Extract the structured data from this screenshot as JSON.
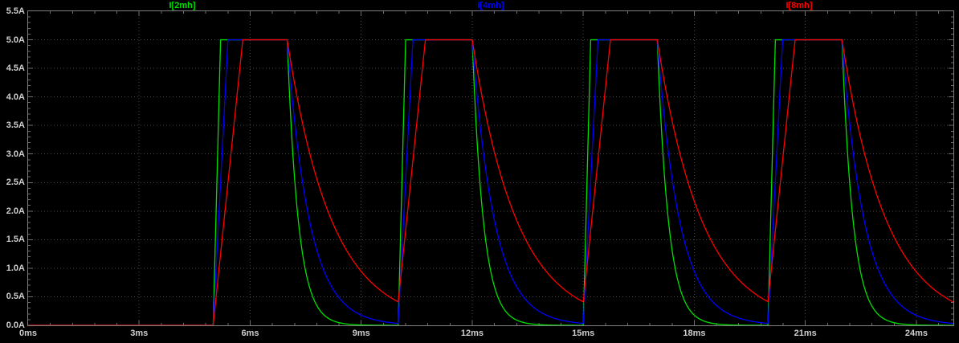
{
  "theme": {
    "background": "#000000",
    "frame_color": "#7d7d7d",
    "grid_color": "#464646",
    "axis_text_color": "#cfcfcf"
  },
  "chart_data": {
    "type": "line",
    "x_unit": "ms",
    "y_unit": "A",
    "xlim": [
      0,
      25
    ],
    "ylim": [
      0,
      5.5
    ],
    "grid": true,
    "legend_position": "top",
    "x_ticks": [
      {
        "t": 0,
        "label": "0ms"
      },
      {
        "t": 3,
        "label": "3ms"
      },
      {
        "t": 6,
        "label": "6ms"
      },
      {
        "t": 9,
        "label": "9ms"
      },
      {
        "t": 12,
        "label": "12ms"
      },
      {
        "t": 15,
        "label": "15ms"
      },
      {
        "t": 18,
        "label": "18ms"
      },
      {
        "t": 21,
        "label": "21ms"
      },
      {
        "t": 24,
        "label": "24ms"
      }
    ],
    "y_ticks": [
      {
        "v": 0.0,
        "label": "0.0A"
      },
      {
        "v": 0.5,
        "label": "0.5A"
      },
      {
        "v": 1.0,
        "label": "1.0A"
      },
      {
        "v": 1.5,
        "label": "1.5A"
      },
      {
        "v": 2.0,
        "label": "2.0A"
      },
      {
        "v": 2.5,
        "label": "2.5A"
      },
      {
        "v": 3.0,
        "label": "3.0A"
      },
      {
        "v": 3.5,
        "label": "3.5A"
      },
      {
        "v": 4.0,
        "label": "4.0A"
      },
      {
        "v": 4.5,
        "label": "4.5A"
      },
      {
        "v": 5.0,
        "label": "5.0A"
      },
      {
        "v": 5.5,
        "label": "5.5A"
      }
    ],
    "pulse": {
      "amplitude_A": 5.0,
      "first_rise_ms": 5.0,
      "on_ms": 2.0,
      "period_ms": 5.0,
      "count": 4
    },
    "series": [
      {
        "name": "I[2mh]",
        "color": "#00e000",
        "rise_ms": 0.2,
        "decay_tau_ms": 0.3
      },
      {
        "name": "I[4mh]",
        "color": "#0000ff",
        "rise_ms": 0.4,
        "decay_tau_ms": 0.6
      },
      {
        "name": "I[8mh]",
        "color": "#ff0000",
        "rise_ms": 0.8,
        "decay_tau_ms": 1.2
      }
    ]
  }
}
